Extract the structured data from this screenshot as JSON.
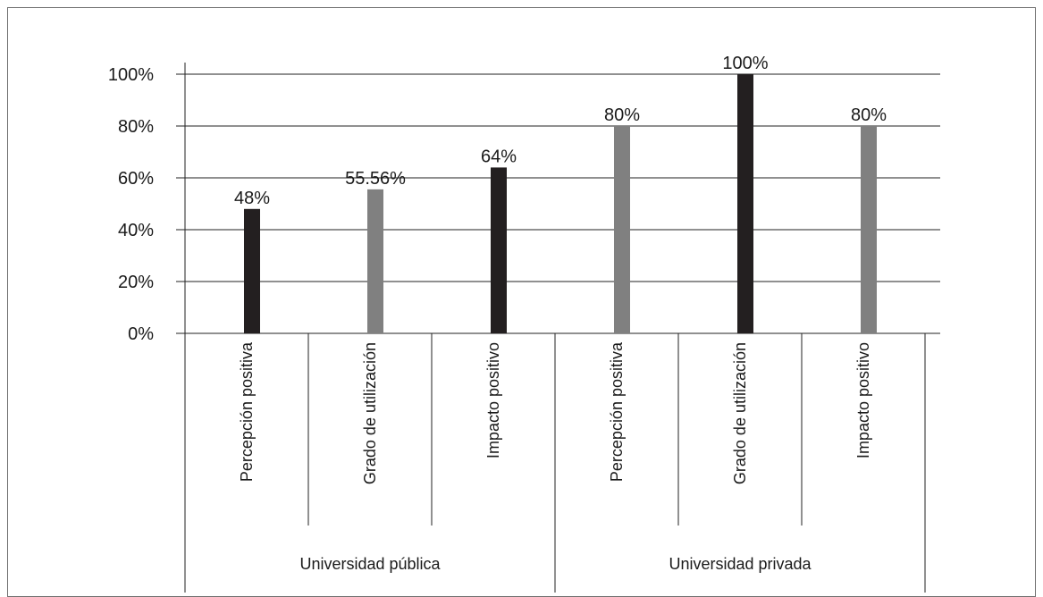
{
  "chart_data": {
    "type": "bar",
    "categories": [
      "Percepción positiva",
      "Grado de utilización",
      "Impacto positivo",
      "Percepción positiva",
      "Grado de utilización",
      "Impacto positivo"
    ],
    "groups": [
      {
        "label": "Universidad pública",
        "span": 3
      },
      {
        "label": "Universidad privada",
        "span": 3
      }
    ],
    "values": [
      48,
      55.56,
      64,
      80,
      100,
      80
    ],
    "data_labels": [
      "48%",
      "55.56%",
      "64%",
      "80%",
      "100%",
      "80%"
    ],
    "bar_colors": [
      "#231f20",
      "#808080",
      "#231f20",
      "#808080",
      "#231f20",
      "#808080"
    ],
    "y_ticks": [
      {
        "value": 0,
        "label": "0%"
      },
      {
        "value": 20,
        "label": "20%"
      },
      {
        "value": 40,
        "label": "40%"
      },
      {
        "value": 60,
        "label": "60%"
      },
      {
        "value": 80,
        "label": "80%"
      },
      {
        "value": 100,
        "label": "100%"
      }
    ],
    "ylim": [
      0,
      100
    ],
    "title": "",
    "xlabel": "",
    "ylabel": "",
    "grid": true,
    "legend": false
  }
}
